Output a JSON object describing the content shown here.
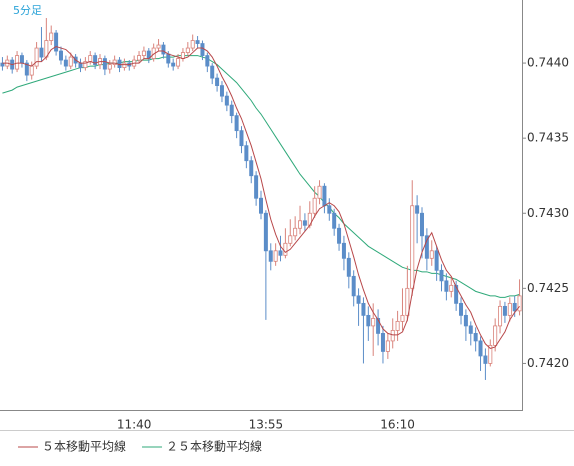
{
  "chart_data": {
    "type": "candlestick",
    "label": "5分足",
    "categories": [
      null,
      null,
      null,
      null,
      null,
      null,
      null,
      null,
      null,
      null,
      null,
      null,
      null,
      null,
      null,
      null,
      null,
      null,
      null,
      null,
      null,
      null,
      null,
      null,
      null,
      null,
      null,
      "11:40",
      null,
      null,
      null,
      null,
      null,
      null,
      null,
      null,
      null,
      null,
      null,
      null,
      null,
      null,
      null,
      null,
      null,
      null,
      null,
      null,
      null,
      null,
      null,
      null,
      null,
      null,
      "13:55",
      null,
      null,
      null,
      null,
      null,
      null,
      null,
      null,
      null,
      null,
      null,
      null,
      null,
      null,
      null,
      null,
      null,
      null,
      null,
      null,
      null,
      null,
      null,
      null,
      null,
      null,
      "16:10",
      null,
      null,
      null,
      null,
      null,
      null,
      null,
      null,
      null,
      null,
      null,
      null,
      null,
      null,
      null,
      null,
      null,
      null,
      null,
      null,
      null,
      null,
      null,
      null,
      null
    ],
    "open": [
      0.744,
      0.74398,
      0.74402,
      0.74396,
      0.74405,
      0.744,
      0.74392,
      0.74398,
      0.7441,
      0.74404,
      0.74415,
      0.7442,
      0.74408,
      0.74402,
      0.74398,
      0.74404,
      0.744,
      0.74397,
      0.74401,
      0.74405,
      0.74399,
      0.74403,
      0.74396,
      0.74399,
      0.74402,
      0.74397,
      0.744,
      0.74398,
      0.74402,
      0.74405,
      0.74408,
      0.74403,
      0.7441,
      0.74412,
      0.74406,
      0.744,
      0.74398,
      0.74403,
      0.74407,
      0.7441,
      0.74415,
      0.74413,
      0.74405,
      0.74398,
      0.7439,
      0.74385,
      0.74378,
      0.74372,
      0.74365,
      0.74355,
      0.74345,
      0.74335,
      0.74325,
      0.7431,
      0.743,
      0.74275,
      0.74268,
      0.74275,
      0.74272,
      0.7428,
      0.74285,
      0.7429,
      0.74295,
      0.74292,
      0.743,
      0.7431,
      0.74318,
      0.74305,
      0.743,
      0.7429,
      0.7428,
      0.7427,
      0.74258,
      0.74245,
      0.7424,
      0.74232,
      0.74225,
      0.7423,
      0.7422,
      0.74208,
      0.74215,
      0.74222,
      0.74228,
      0.74232,
      0.7425,
      0.74305,
      0.743,
      0.74285,
      0.7427,
      0.74275,
      0.74262,
      0.74255,
      0.74248,
      0.74252,
      0.7424,
      0.74232,
      0.74225,
      0.7422,
      0.74215,
      0.74205,
      0.742,
      0.74212,
      0.74225,
      0.74238,
      0.74232,
      0.7424,
      0.74235
    ],
    "high": [
      0.74404,
      0.74405,
      0.74404,
      0.74408,
      0.74407,
      0.74402,
      0.74401,
      0.74414,
      0.74424,
      0.7443,
      0.74425,
      0.74422,
      0.74411,
      0.74405,
      0.74407,
      0.74406,
      0.74403,
      0.74404,
      0.74408,
      0.74407,
      0.74406,
      0.74405,
      0.74402,
      0.74405,
      0.74404,
      0.74403,
      0.74402,
      0.74405,
      0.74408,
      0.74411,
      0.7441,
      0.74413,
      0.74416,
      0.74414,
      0.74408,
      0.74403,
      0.74406,
      0.7441,
      0.74414,
      0.74419,
      0.74418,
      0.74415,
      0.74407,
      0.744,
      0.74393,
      0.74388,
      0.74381,
      0.74375,
      0.74367,
      0.74358,
      0.74348,
      0.74338,
      0.74328,
      0.74315,
      0.74302,
      0.7428,
      0.7428,
      0.74285,
      0.7429,
      0.74296,
      0.74298,
      0.74305,
      0.743,
      0.74308,
      0.74318,
      0.74322,
      0.7432,
      0.7431,
      0.74303,
      0.74293,
      0.74285,
      0.74274,
      0.74262,
      0.7425,
      0.74244,
      0.74238,
      0.7424,
      0.74236,
      0.74225,
      0.7422,
      0.7423,
      0.74235,
      0.7425,
      0.74265,
      0.74322,
      0.74312,
      0.74304,
      0.7429,
      0.74282,
      0.74278,
      0.74266,
      0.7426,
      0.74258,
      0.74255,
      0.74244,
      0.74236,
      0.74228,
      0.74224,
      0.74218,
      0.7421,
      0.74216,
      0.7423,
      0.74242,
      0.74241,
      0.74244,
      0.74245,
      0.74256
    ],
    "low": [
      0.74395,
      0.74396,
      0.74393,
      0.74394,
      0.74397,
      0.74388,
      0.74389,
      0.74396,
      0.74401,
      0.74402,
      0.74412,
      0.74405,
      0.74399,
      0.74395,
      0.74396,
      0.74397,
      0.74394,
      0.74395,
      0.74399,
      0.74396,
      0.74396,
      0.74392,
      0.74393,
      0.74397,
      0.74394,
      0.74395,
      0.74395,
      0.74396,
      0.744,
      0.74403,
      0.744,
      0.74401,
      0.74408,
      0.74403,
      0.74397,
      0.74395,
      0.74396,
      0.74401,
      0.74405,
      0.74408,
      0.7441,
      0.74402,
      0.74394,
      0.74386,
      0.74381,
      0.74374,
      0.74368,
      0.7436,
      0.7435,
      0.7434,
      0.7433,
      0.7432,
      0.74305,
      0.74296,
      0.74229,
      0.74262,
      0.74265,
      0.74268,
      0.7427,
      0.74278,
      0.74282,
      0.74286,
      0.74288,
      0.7429,
      0.74297,
      0.74306,
      0.743,
      0.74295,
      0.74285,
      0.74275,
      0.74262,
      0.7425,
      0.74238,
      0.74225,
      0.742,
      0.74215,
      0.74205,
      0.74212,
      0.742,
      0.74203,
      0.7421,
      0.74215,
      0.74222,
      0.74228,
      0.74245,
      0.7428,
      0.7427,
      0.74262,
      0.74265,
      0.74255,
      0.74248,
      0.74242,
      0.74244,
      0.74235,
      0.74226,
      0.74215,
      0.74212,
      0.74208,
      0.74195,
      0.74189,
      0.74198,
      0.74208,
      0.7422,
      0.74227,
      0.74228,
      0.74231,
      0.74232
    ],
    "close": [
      0.74398,
      0.74402,
      0.74396,
      0.74405,
      0.744,
      0.74392,
      0.74398,
      0.7441,
      0.74404,
      0.74415,
      0.7442,
      0.74408,
      0.74402,
      0.74398,
      0.74404,
      0.744,
      0.74397,
      0.74401,
      0.74405,
      0.74399,
      0.74403,
      0.74396,
      0.74399,
      0.74402,
      0.74397,
      0.744,
      0.74398,
      0.74402,
      0.74405,
      0.74408,
      0.74403,
      0.7441,
      0.74412,
      0.74406,
      0.744,
      0.74398,
      0.74403,
      0.74407,
      0.7441,
      0.74415,
      0.74413,
      0.74405,
      0.74398,
      0.7439,
      0.74385,
      0.74378,
      0.74372,
      0.74365,
      0.74355,
      0.74345,
      0.74335,
      0.74325,
      0.7431,
      0.743,
      0.74275,
      0.74268,
      0.74275,
      0.74272,
      0.7428,
      0.74285,
      0.7429,
      0.74295,
      0.74292,
      0.743,
      0.7431,
      0.74318,
      0.74305,
      0.743,
      0.7429,
      0.7428,
      0.7427,
      0.74258,
      0.74245,
      0.7424,
      0.74232,
      0.74225,
      0.7423,
      0.7422,
      0.74208,
      0.74215,
      0.74222,
      0.74228,
      0.74232,
      0.7425,
      0.74305,
      0.743,
      0.74285,
      0.7427,
      0.74275,
      0.74262,
      0.74255,
      0.74248,
      0.74252,
      0.7424,
      0.74232,
      0.74225,
      0.7422,
      0.74215,
      0.74205,
      0.742,
      0.74212,
      0.74225,
      0.74238,
      0.74232,
      0.7424,
      0.74235,
      0.74245
    ],
    "up_color": "#d9837b",
    "down_color": "#5b8dc8",
    "series": [
      {
        "name": "５本移動平均線",
        "color": "#b8484a",
        "values": [
          0.744,
          0.744,
          0.74399,
          0.744,
          0.744,
          0.74399,
          0.74398,
          0.74401,
          0.74401,
          0.74404,
          0.74409,
          0.74411,
          0.7441,
          0.74409,
          0.74406,
          0.74402,
          0.744,
          0.744,
          0.74401,
          0.744,
          0.74401,
          0.74401,
          0.744,
          0.744,
          0.74399,
          0.74399,
          0.74399,
          0.744,
          0.744,
          0.74403,
          0.74403,
          0.74406,
          0.74408,
          0.74408,
          0.74406,
          0.74405,
          0.74404,
          0.74403,
          0.74404,
          0.74407,
          0.7441,
          0.7441,
          0.74408,
          0.74404,
          0.74398,
          0.74391,
          0.74385,
          0.74378,
          0.7437,
          0.74363,
          0.74354,
          0.74345,
          0.74334,
          0.74323,
          0.74309,
          0.74296,
          0.74286,
          0.74278,
          0.74274,
          0.74276,
          0.7428,
          0.74284,
          0.74288,
          0.74292,
          0.74298,
          0.74303,
          0.74305,
          0.74307,
          0.74305,
          0.74301,
          0.74293,
          0.74282,
          0.74271,
          0.74259,
          0.74249,
          0.7424,
          0.74234,
          0.74229,
          0.74223,
          0.7422,
          0.74219,
          0.74219,
          0.74221,
          0.74229,
          0.74247,
          0.74263,
          0.74274,
          0.74282,
          0.74287,
          0.74278,
          0.74269,
          0.74262,
          0.74258,
          0.74251,
          0.74245,
          0.74239,
          0.74234,
          0.74226,
          0.74219,
          0.74213,
          0.7421,
          0.74211,
          0.74216,
          0.74221,
          0.74229,
          0.74234,
          0.74238
        ]
      },
      {
        "name": "２５本移動平均線",
        "color": "#2fa97a",
        "values": [
          0.7438,
          0.74381,
          0.74382,
          0.74384,
          0.74385,
          0.74386,
          0.74387,
          0.74388,
          0.74389,
          0.7439,
          0.74391,
          0.74392,
          0.74393,
          0.74394,
          0.74395,
          0.74396,
          0.74397,
          0.74397,
          0.74398,
          0.74398,
          0.74399,
          0.74399,
          0.744,
          0.744,
          0.744,
          0.74401,
          0.74401,
          0.74401,
          0.74402,
          0.74402,
          0.74402,
          0.74403,
          0.74403,
          0.74404,
          0.74404,
          0.74404,
          0.74405,
          0.74405,
          0.74405,
          0.74405,
          0.74405,
          0.74404,
          0.74403,
          0.74401,
          0.74399,
          0.74396,
          0.74393,
          0.7439,
          0.74387,
          0.74383,
          0.74379,
          0.74375,
          0.7437,
          0.74366,
          0.74361,
          0.74356,
          0.74351,
          0.74346,
          0.74341,
          0.74336,
          0.74331,
          0.74326,
          0.74322,
          0.74318,
          0.74314,
          0.74311,
          0.74307,
          0.74304,
          0.743,
          0.74297,
          0.74293,
          0.7429,
          0.74287,
          0.74284,
          0.74281,
          0.74278,
          0.74276,
          0.74274,
          0.74272,
          0.7427,
          0.74268,
          0.74266,
          0.74264,
          0.74263,
          0.74262,
          0.74262,
          0.74261,
          0.74261,
          0.7426,
          0.7426,
          0.74259,
          0.74258,
          0.74257,
          0.74256,
          0.74254,
          0.74252,
          0.7425,
          0.74248,
          0.74247,
          0.74246,
          0.74245,
          0.74245,
          0.74244,
          0.74244,
          0.74245,
          0.74245,
          0.74246
        ]
      }
    ],
    "ylim": [
      0.74169,
      0.74442
    ],
    "yticks": [
      {
        "value": 0.744,
        "label": "0.7440"
      },
      {
        "value": 0.7435,
        "label": "0.7435"
      },
      {
        "value": 0.743,
        "label": "0.7430"
      },
      {
        "value": 0.7425,
        "label": "0.7425"
      },
      {
        "value": 0.742,
        "label": "0.7420"
      }
    ],
    "grid": false
  }
}
